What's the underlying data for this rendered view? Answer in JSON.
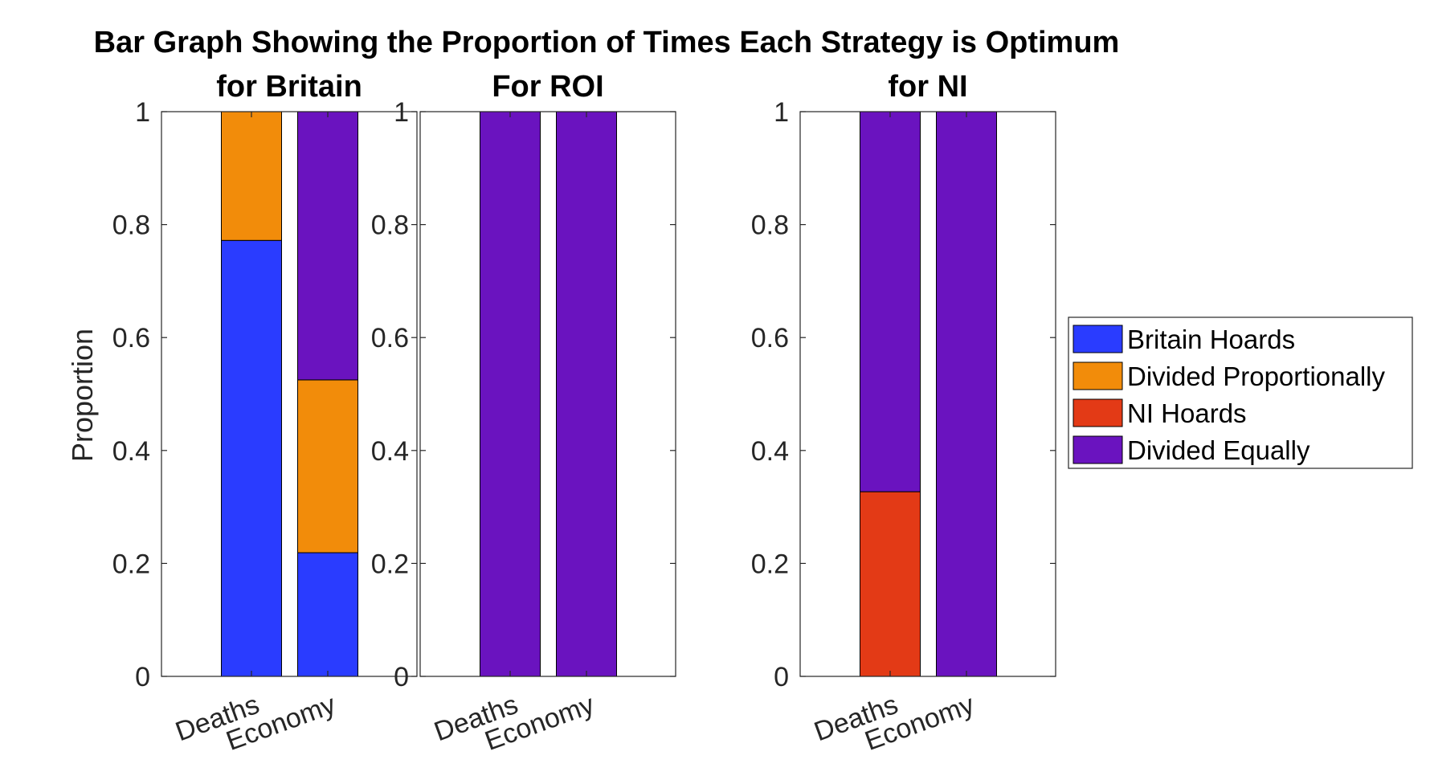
{
  "chart_data": {
    "type": "bar",
    "stacked": true,
    "title": "Bar Graph Showing the Proportion of Times Each Strategy is Optimum",
    "ylabel": "Proportion",
    "ylim": [
      0,
      1
    ],
    "yticks": [
      "0",
      "0.2",
      "0.4",
      "0.6",
      "0.8",
      "1"
    ],
    "categories": [
      "Deaths",
      "Economy"
    ],
    "legend": {
      "placement": "right",
      "entries": [
        {
          "name": "Britain Hoards",
          "color": "#2a3cff"
        },
        {
          "name": "Divided Proportionally",
          "color": "#f28c0a"
        },
        {
          "name": "NI Hoards",
          "color": "#e33a16"
        },
        {
          "name": "Divided Equally",
          "color": "#6a13bf"
        }
      ]
    },
    "panels": [
      {
        "subtitle": "for Britain",
        "series": [
          {
            "name": "Britain Hoards",
            "values": [
              0.772,
              0.219
            ]
          },
          {
            "name": "Divided Proportionally",
            "values": [
              0.228,
              0.306
            ]
          },
          {
            "name": "NI Hoards",
            "values": [
              0,
              0
            ]
          },
          {
            "name": "Divided Equally",
            "values": [
              0,
              0.475
            ]
          }
        ]
      },
      {
        "subtitle": "For ROI",
        "series": [
          {
            "name": "Britain Hoards",
            "values": [
              0,
              0
            ]
          },
          {
            "name": "Divided Proportionally",
            "values": [
              0,
              0
            ]
          },
          {
            "name": "NI Hoards",
            "values": [
              0,
              0
            ]
          },
          {
            "name": "Divided Equally",
            "values": [
              1,
              1
            ]
          }
        ]
      },
      {
        "subtitle": "for NI",
        "series": [
          {
            "name": "Britain Hoards",
            "values": [
              0,
              0
            ]
          },
          {
            "name": "Divided Proportionally",
            "values": [
              0,
              0
            ]
          },
          {
            "name": "NI Hoards",
            "values": [
              0.327,
              0
            ]
          },
          {
            "name": "Divided Equally",
            "values": [
              0.673,
              1
            ]
          }
        ]
      }
    ]
  }
}
